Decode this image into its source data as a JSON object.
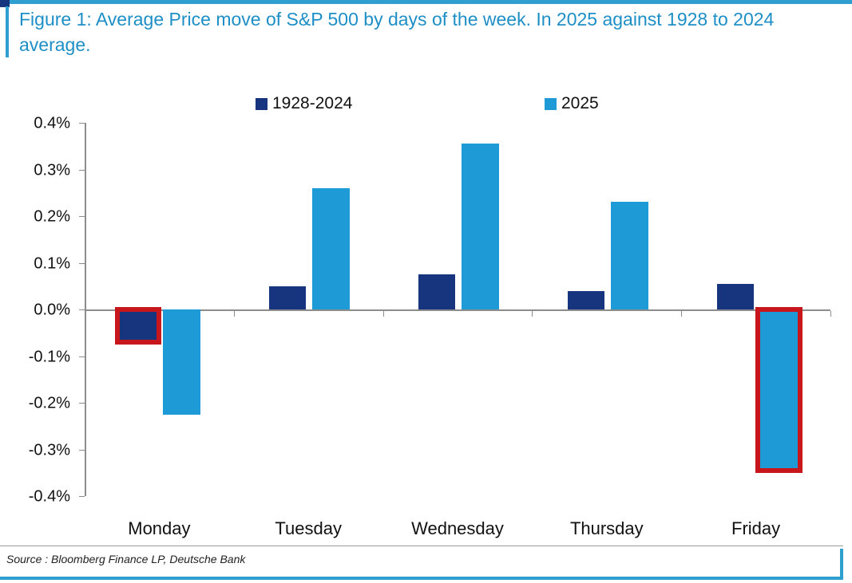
{
  "figure": {
    "title": "Figure 1: Average Price move of S&P 500 by days of the week. In 2025 against 1928 to 2024 average.",
    "source": "Source : Bloomberg Finance LP, Deutsche Bank"
  },
  "colors": {
    "navy": "#17357e",
    "lightblue": "#1e9bd7",
    "highlight_red": "#c8161d",
    "title_blue": "#1e8fc6",
    "rule_blue": "#2f9fd0",
    "axis_gray": "#8c8c8c"
  },
  "legend": {
    "items": [
      {
        "label": "1928-2024",
        "color_key": "navy"
      },
      {
        "label": "2025",
        "color_key": "lightblue"
      }
    ]
  },
  "chart_data": {
    "type": "bar",
    "title": "Average Price move of S&P 500 by days of the week. In 2025 against 1928 to 2024 average.",
    "categories": [
      "Monday",
      "Tuesday",
      "Wednesday",
      "Thursday",
      "Friday"
    ],
    "series": [
      {
        "name": "1928-2024",
        "color_key": "navy",
        "values": [
          -0.065,
          0.05,
          0.075,
          0.04,
          0.055
        ]
      },
      {
        "name": "2025",
        "color_key": "lightblue",
        "values": [
          -0.225,
          0.26,
          0.355,
          0.23,
          -0.34
        ]
      }
    ],
    "unit": "%",
    "xlabel": "",
    "ylabel": "",
    "ylim": [
      -0.4,
      0.4
    ],
    "y_ticks": [
      "0.4%",
      "0.3%",
      "0.2%",
      "0.1%",
      "0.0%",
      "-0.1%",
      "-0.2%",
      "-0.3%",
      "-0.4%"
    ],
    "grid": false,
    "legend_position": "top",
    "highlights": [
      {
        "series": "1928-2024",
        "category": "Monday",
        "note": "red box around bar"
      },
      {
        "series": "2025",
        "category": "Friday",
        "note": "red box around bar"
      }
    ]
  }
}
